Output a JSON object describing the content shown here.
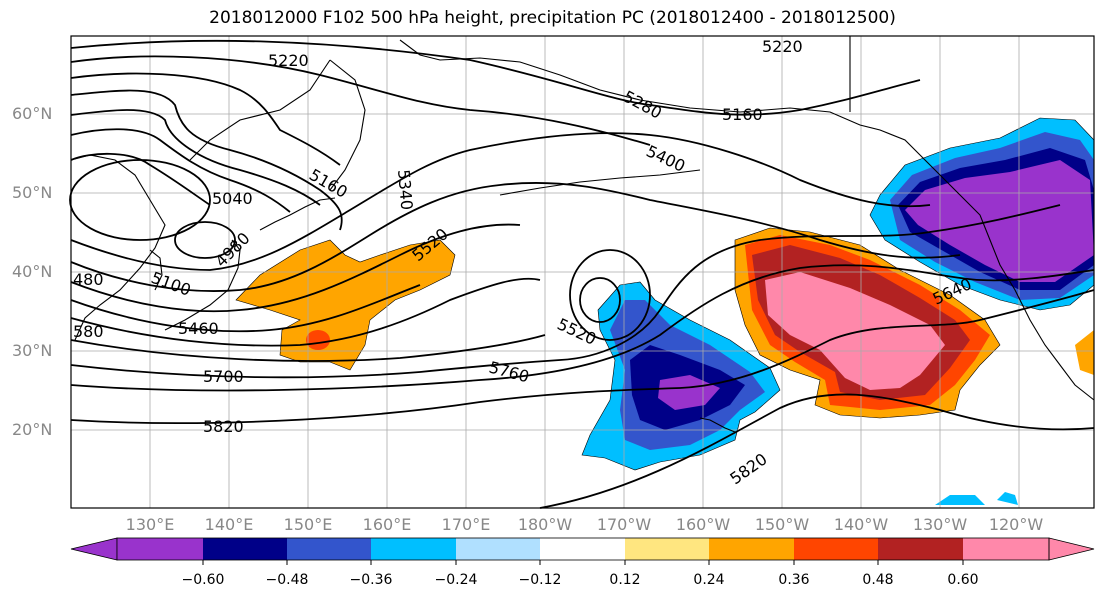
{
  "title": "2018012000 F102 500 hPa height, precipitation PC (2018012400 - 2018012500)",
  "map": {
    "lat_labels": [
      "60°N",
      "50°N",
      "40°N",
      "30°N",
      "20°N"
    ],
    "lon_labels": [
      "130°E",
      "140°E",
      "150°E",
      "160°E",
      "170°E",
      "180°W",
      "170°W",
      "160°W",
      "150°W",
      "140°W",
      "130°W",
      "120°W"
    ],
    "contour_labels": [
      "5220",
      "5220",
      "5280",
      "5160",
      "5400",
      "5160",
      "5340",
      "5040",
      "4980",
      "5100",
      "480",
      "5460",
      "580",
      "5520",
      "5520",
      "5760",
      "5700",
      "5640",
      "5820",
      "5820"
    ]
  },
  "colorbar": {
    "colors": [
      "#9933cc",
      "#000088",
      "#3355cc",
      "#00bfff",
      "#b0e0ff",
      "#ffffff",
      "#ffe680",
      "#ffa500",
      "#ff4500",
      "#b22222",
      "#ff88aa"
    ],
    "tick_labels": [
      "−0.60",
      "−0.48",
      "−0.36",
      "−0.24",
      "−0.12",
      "0.12",
      "0.24",
      "0.36",
      "0.48",
      "0.60"
    ]
  }
}
